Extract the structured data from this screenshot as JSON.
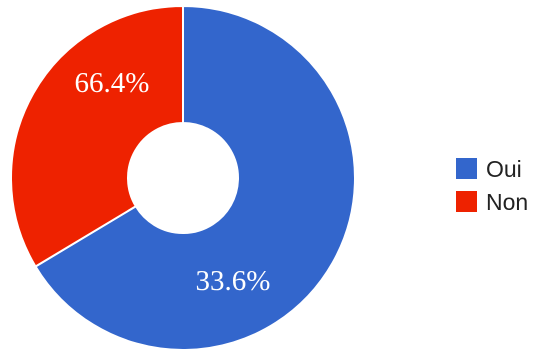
{
  "chart_data": {
    "type": "pie",
    "donut": true,
    "title": "",
    "series": [
      {
        "name": "Oui",
        "value": 66.4,
        "label": "66.4%",
        "color": "#3366cc"
      },
      {
        "name": "Non",
        "value": 33.6,
        "label": "33.6%",
        "color": "#ee2200"
      }
    ],
    "legend_position": "right"
  }
}
